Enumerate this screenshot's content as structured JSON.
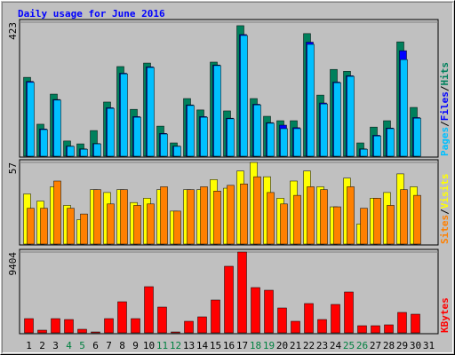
{
  "title": "Daily usage for June 2016",
  "categories": [
    "1",
    "2",
    "3",
    "4",
    "5",
    "6",
    "7",
    "8",
    "9",
    "10",
    "11",
    "12",
    "13",
    "14",
    "15",
    "16",
    "17",
    "18",
    "19",
    "20",
    "21",
    "22",
    "23",
    "24",
    "25",
    "26",
    "27",
    "28",
    "29",
    "30",
    "31"
  ],
  "category_colors": [
    "#000000",
    "#000000",
    "#000000",
    "#008040",
    "#008040",
    "#000000",
    "#000000",
    "#000000",
    "#000000",
    "#000000",
    "#008040",
    "#008040",
    "#000000",
    "#000000",
    "#000000",
    "#000000",
    "#000000",
    "#008040",
    "#008040",
    "#000000",
    "#000000",
    "#000000",
    "#000000",
    "#000000",
    "#008040",
    "#008040",
    "#000000",
    "#000000",
    "#000000",
    "#000000",
    "#000000"
  ],
  "legend_separator": "/",
  "chart_data": [
    {
      "type": "bar",
      "ylim": [
        0,
        423
      ],
      "yticks": [
        423
      ],
      "grid": true,
      "series": [
        {
          "name": "Hits",
          "color": "#00805c",
          "values": [
            249,
            101,
            196,
            48,
            39,
            81,
            171,
            283,
            148,
            294,
            95,
            42,
            182,
            146,
            297,
            143,
            412,
            182,
            126,
            112,
            112,
            387,
            193,
            274,
            268,
            42,
            92,
            112,
            361,
            154,
            0
          ]
        },
        {
          "name": "Files",
          "color": "#0000ff",
          "values": [
            236,
            86,
            179,
            32,
            23,
            40,
            153,
            262,
            125,
            282,
            72,
            32,
            162,
            125,
            288,
            120,
            384,
            164,
            106,
            98,
            90,
            360,
            168,
            234,
            254,
            23,
            66,
            89,
            333,
            122,
            0
          ]
        },
        {
          "name": "Pages",
          "color": "#00c0ff",
          "values": [
            233,
            84,
            177,
            31,
            22,
            39,
            151,
            260,
            123,
            280,
            70,
            31,
            160,
            123,
            286,
            118,
            381,
            162,
            104,
            87,
            87,
            353,
            165,
            232,
            252,
            22,
            64,
            87,
            305,
            120,
            0
          ]
        }
      ]
    },
    {
      "type": "bar",
      "ylim": [
        0,
        57
      ],
      "yticks": [
        57
      ],
      "grid": true,
      "series": [
        {
          "name": "Visits",
          "color": "#ffff00",
          "values": [
            35,
            30,
            40,
            27,
            17,
            38,
            36,
            38,
            29,
            32,
            38,
            23,
            38,
            38,
            45,
            39,
            51,
            57,
            47,
            32,
            44,
            51,
            40,
            26,
            46,
            14,
            32,
            36,
            49,
            40,
            0
          ]
        },
        {
          "name": "Sites",
          "color": "#ff8000",
          "values": [
            25,
            25,
            44,
            25,
            21,
            38,
            28,
            38,
            27,
            28,
            40,
            23,
            38,
            40,
            37,
            41,
            42,
            47,
            36,
            28,
            34,
            40,
            38,
            26,
            40,
            25,
            32,
            27,
            38,
            34,
            0
          ]
        }
      ]
    },
    {
      "type": "bar",
      "ylim": [
        0,
        9404
      ],
      "yticks": [
        9404
      ],
      "grid": true,
      "series": [
        {
          "name": "KBytes",
          "color": "#ff0000",
          "values": [
            1653,
            310,
            1653,
            1550,
            413,
            103,
            1653,
            3617,
            1653,
            5374,
            2997,
            103,
            1343,
            1860,
            3824,
            7751,
            9404,
            5271,
            4960,
            2894,
            1343,
            3410,
            1550,
            3307,
            4754,
            827,
            827,
            930,
            2377,
            2170,
            0
          ]
        }
      ]
    }
  ]
}
